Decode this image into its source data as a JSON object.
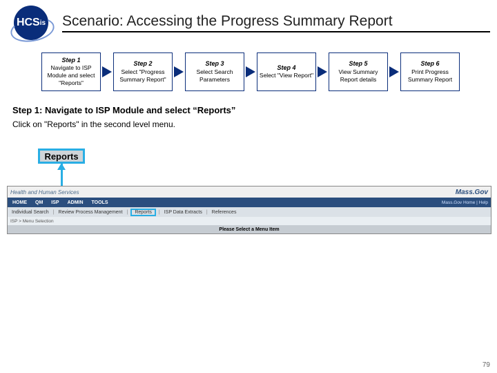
{
  "logo_text": "HCS",
  "logo_sub": "is",
  "title": "Scenario: Accessing the Progress Summary Report",
  "steps": [
    {
      "num": "Step 1",
      "text": "Navigate to ISP Module and select \"Reports\""
    },
    {
      "num": "Step 2",
      "text": "Select \"Progress Summary Report\""
    },
    {
      "num": "Step 3",
      "text": "Select Search Parameters"
    },
    {
      "num": "Step 4",
      "text": "Select \"View Report\""
    },
    {
      "num": "Step 5",
      "text": "View Summary Report details"
    },
    {
      "num": "Step 6",
      "text": "Print Progress Summary Report"
    }
  ],
  "step_heading": "Step 1: Navigate to ISP Module and select “Reports”",
  "step_text": "Click on \"Reports\" in the second level menu.",
  "callout_label": "Reports",
  "app": {
    "top_left": "Health and Human Services",
    "top_right": "Mass.Gov",
    "nav": [
      "HOME",
      "QM",
      "ISP",
      "ADMIN",
      "TOOLS"
    ],
    "right_links": "Mass.Gov Home | Help",
    "sub": {
      "items": [
        "Individual Search",
        "Review Process Management",
        "Reports",
        "ISP Data Extracts",
        "References"
      ]
    },
    "crumb": "ISP > Menu Selection",
    "msg": "Please Select a Menu Item"
  },
  "page_num": "79",
  "colors": {
    "brand_blue": "#0a2d7a",
    "highlight": "#29aee4",
    "nav_bg": "#2b4e7e"
  }
}
